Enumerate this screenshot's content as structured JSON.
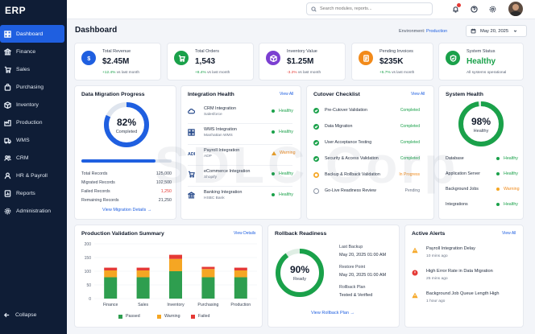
{
  "app": {
    "title": "ERP"
  },
  "sidebar": {
    "items": [
      {
        "label": "Dashboard",
        "icon": "dashboard-icon"
      },
      {
        "label": "Finance",
        "icon": "bank-icon"
      },
      {
        "label": "Sales",
        "icon": "cart-icon"
      },
      {
        "label": "Purchasing",
        "icon": "bag-icon"
      },
      {
        "label": "Inventory",
        "icon": "box-icon"
      },
      {
        "label": "Production",
        "icon": "factory-icon"
      },
      {
        "label": "WMS",
        "icon": "truck-icon"
      },
      {
        "label": "CRM",
        "icon": "people-icon"
      },
      {
        "label": "HR & Payroll",
        "icon": "user-icon"
      },
      {
        "label": "Reports",
        "icon": "report-icon"
      },
      {
        "label": "Administration",
        "icon": "gear-icon"
      }
    ],
    "collapse_label": "Collapse"
  },
  "topbar": {
    "search_placeholder": "Search modules, reports..."
  },
  "header": {
    "title": "Dashboard",
    "env_label": "Environment:",
    "env_value": "Production",
    "date": "May 20, 2025"
  },
  "kpis": [
    {
      "label": "Total Revenue",
      "value": "$2.45M",
      "delta": "+12.4%",
      "delta_text": "vs last month",
      "trend": "up",
      "color": "#1f5fe0"
    },
    {
      "label": "Total Orders",
      "value": "1,543",
      "delta": "+8.4%",
      "delta_text": "vs last month",
      "trend": "up",
      "color": "#1aa14a"
    },
    {
      "label": "Inventory Value",
      "value": "$1.25M",
      "delta": "-3.2%",
      "delta_text": "vs last month",
      "trend": "down",
      "color": "#7b3fd1"
    },
    {
      "label": "Pending Invoices",
      "value": "$235K",
      "delta": "+5.7%",
      "delta_text": "vs last month",
      "trend": "up",
      "color": "#f28a1a"
    },
    {
      "label": "System Status",
      "value": "Healthy",
      "delta": "",
      "delta_text": "All systems operational",
      "trend": "none",
      "color": "#1aa14a"
    }
  ],
  "migration": {
    "title": "Data Migration Progress",
    "percent": "82%",
    "percent_value": 82,
    "status": "Completed",
    "stats": [
      {
        "label": "Total Records",
        "value": "125,000"
      },
      {
        "label": "Migrated Records",
        "value": "102,500"
      },
      {
        "label": "Failed Records",
        "value": "1,250"
      },
      {
        "label": "Remaining Records",
        "value": "21,250"
      }
    ],
    "link": "View Migration Details"
  },
  "integration": {
    "title": "Integration Health",
    "view_all": "View All",
    "items": [
      {
        "name": "CRM Integration",
        "sub": "Salesforce",
        "status": "Healthy",
        "state": "ok",
        "icon": "cloud-icon"
      },
      {
        "name": "WMS Integration",
        "sub": "Manhattan WMS",
        "status": "Healthy",
        "state": "ok",
        "icon": "grid-icon"
      },
      {
        "name": "Payroll Integration",
        "sub": "ADP",
        "status": "Warning",
        "state": "warn",
        "icon": "adp-icon"
      },
      {
        "name": "eCommerce Integration",
        "sub": "Shopify",
        "status": "Healthy",
        "state": "ok",
        "icon": "cart-icon"
      },
      {
        "name": "Banking Integration",
        "sub": "HSBC Bank",
        "status": "Healthy",
        "state": "ok",
        "icon": "bank-icon"
      }
    ]
  },
  "cutover": {
    "title": "Cutover Checklist",
    "view_all": "View All",
    "items": [
      {
        "name": "Pre-Cutover Validation",
        "status": "Completed",
        "state": "done"
      },
      {
        "name": "Data Migration",
        "status": "Completed",
        "state": "done"
      },
      {
        "name": "User Acceptance Testing",
        "status": "Completed",
        "state": "done"
      },
      {
        "name": "Security & Access Validation",
        "status": "Completed",
        "state": "done"
      },
      {
        "name": "Backup & Rollback Validation",
        "status": "In Progress",
        "state": "progress"
      },
      {
        "name": "Go-Live Readiness Review",
        "status": "Pending",
        "state": "pending"
      }
    ]
  },
  "system_health": {
    "title": "System Health",
    "percent": "98%",
    "percent_value": 98,
    "status": "Healthy",
    "rows": [
      {
        "label": "Database",
        "status": "Healthy",
        "state": "ok"
      },
      {
        "label": "Application Server",
        "status": "Healthy",
        "state": "ok"
      },
      {
        "label": "Background Jobs",
        "status": "Warning",
        "state": "warn"
      },
      {
        "label": "Integrations",
        "status": "Healthy",
        "state": "ok"
      }
    ]
  },
  "chart_data": {
    "type": "bar",
    "title": "Production Validation Summary",
    "view_details": "View Details",
    "categories": [
      "Finance",
      "Sales",
      "Inventory",
      "Purchasing",
      "Production"
    ],
    "series": [
      {
        "name": "Passed",
        "color": "#2e9e4f",
        "values": [
          78,
          78,
          100,
          78,
          78
        ]
      },
      {
        "name": "Warning",
        "color": "#f5a623",
        "values": [
          25,
          25,
          45,
          30,
          25
        ]
      },
      {
        "name": "Failed",
        "color": "#e53935",
        "values": [
          10,
          10,
          15,
          8,
          10
        ]
      }
    ],
    "y_ticks": [
      "200",
      "150",
      "100",
      "50",
      "0"
    ],
    "ylim": [
      0,
      200
    ],
    "stacked": true,
    "legend": "bottom"
  },
  "rollback": {
    "title": "Rollback Readiness",
    "percent": "90%",
    "percent_value": 90,
    "status": "Ready",
    "fields": [
      {
        "label": "Last Backup",
        "value": "May 20, 2025 01:00 AM"
      },
      {
        "label": "Restore Point",
        "value": "May 20, 2025 01:00 AM"
      },
      {
        "label": "Rollback Plan",
        "value": "Tested & Verified"
      }
    ],
    "link": "View Rollback Plan"
  },
  "alerts": {
    "title": "Active Alerts",
    "view_all": "View All",
    "items": [
      {
        "title": "Payroll Integration Delay",
        "time": "10 mins ago",
        "severity": "warning"
      },
      {
        "title": "High Error Rate in Data Migration",
        "time": "25 mins ago",
        "severity": "error"
      },
      {
        "title": "Background Job Queue Length High",
        "time": "1 hour ago",
        "severity": "warning"
      }
    ]
  },
  "watermark": "SDLC Corp"
}
